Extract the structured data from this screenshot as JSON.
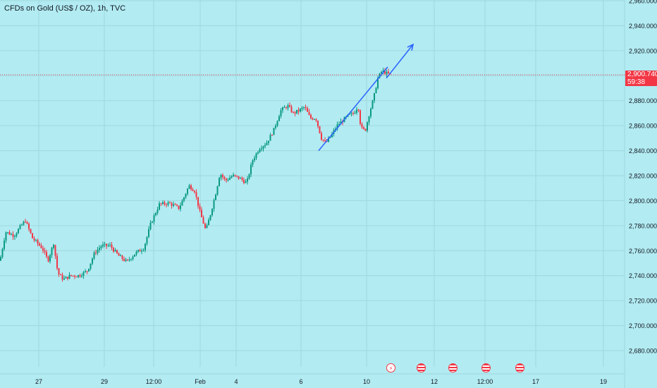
{
  "title": "CFDs on Gold (US$ / OZ), 1h, TVC",
  "price": {
    "last": "2,900.740",
    "countdown": "59:38",
    "value": 2900.74
  },
  "colors": {
    "background": "#b2ebf2",
    "grid": "#9fd8de",
    "up": "#089981",
    "down": "#f23645",
    "trend": "#2962ff",
    "text": "#131722",
    "price_line": "#f23645"
  },
  "events": [
    {
      "icon": "flash-icon",
      "type": "flash"
    },
    {
      "icon": "us-flag-icon",
      "type": "us"
    },
    {
      "icon": "us-flag-icon",
      "type": "us"
    },
    {
      "icon": "us-flag-icon",
      "type": "us"
    },
    {
      "icon": "us-flag-icon",
      "type": "us"
    }
  ],
  "chart_data": {
    "type": "candlestick",
    "title": "CFDs on Gold (US$ / OZ), 1h, TVC",
    "ylim": [
      2670,
      2960
    ],
    "y_ticks": [
      "2,960.000",
      "2,940.000",
      "2,920.000",
      "2,900.000",
      "2,880.000",
      "2,860.000",
      "2,840.000",
      "2,820.000",
      "2,800.000",
      "2,780.000",
      "2,760.000",
      "2,740.000",
      "2,720.000",
      "2,700.000",
      "2,680.000"
    ],
    "x_ticks": [
      "27",
      "29",
      "12:00",
      "Feb",
      "4",
      "6",
      "10",
      "12",
      "12:00",
      "17",
      "19"
    ],
    "grid": true,
    "price_path": [
      [
        0,
        2752
      ],
      [
        8,
        2775
      ],
      [
        20,
        2772
      ],
      [
        30,
        2780
      ],
      [
        36,
        2784
      ],
      [
        46,
        2770
      ],
      [
        60,
        2762
      ],
      [
        68,
        2752
      ],
      [
        76,
        2766
      ],
      [
        82,
        2742
      ],
      [
        90,
        2737
      ],
      [
        100,
        2740
      ],
      [
        112,
        2740
      ],
      [
        124,
        2744
      ],
      [
        134,
        2758
      ],
      [
        144,
        2764
      ],
      [
        156,
        2764
      ],
      [
        168,
        2756
      ],
      [
        180,
        2751
      ],
      [
        192,
        2758
      ],
      [
        204,
        2762
      ],
      [
        214,
        2782
      ],
      [
        226,
        2797
      ],
      [
        240,
        2798
      ],
      [
        254,
        2794
      ],
      [
        262,
        2804
      ],
      [
        268,
        2812
      ],
      [
        276,
        2808
      ],
      [
        284,
        2790
      ],
      [
        292,
        2776
      ],
      [
        298,
        2788
      ],
      [
        306,
        2806
      ],
      [
        312,
        2822
      ],
      [
        320,
        2816
      ],
      [
        330,
        2820
      ],
      [
        340,
        2818
      ],
      [
        350,
        2814
      ],
      [
        358,
        2832
      ],
      [
        368,
        2842
      ],
      [
        378,
        2846
      ],
      [
        388,
        2856
      ],
      [
        398,
        2872
      ],
      [
        408,
        2876
      ],
      [
        416,
        2870
      ],
      [
        424,
        2872
      ],
      [
        432,
        2875
      ],
      [
        440,
        2866
      ],
      [
        448,
        2866
      ],
      [
        456,
        2850
      ],
      [
        462,
        2846
      ],
      [
        470,
        2852
      ],
      [
        478,
        2860
      ],
      [
        486,
        2864
      ],
      [
        494,
        2868
      ],
      [
        502,
        2870
      ],
      [
        508,
        2876
      ],
      [
        512,
        2858
      ],
      [
        518,
        2856
      ],
      [
        524,
        2870
      ],
      [
        530,
        2882
      ],
      [
        536,
        2898
      ],
      [
        542,
        2904
      ],
      [
        548,
        2902
      ],
      [
        554,
        2900.74
      ]
    ],
    "trend_line": {
      "x1": 452,
      "y1": 2840,
      "x2": 550,
      "y2": 2907
    },
    "trend_arrow": {
      "x1": 548,
      "y1": 2898,
      "x2": 586,
      "y2": 2925
    }
  }
}
